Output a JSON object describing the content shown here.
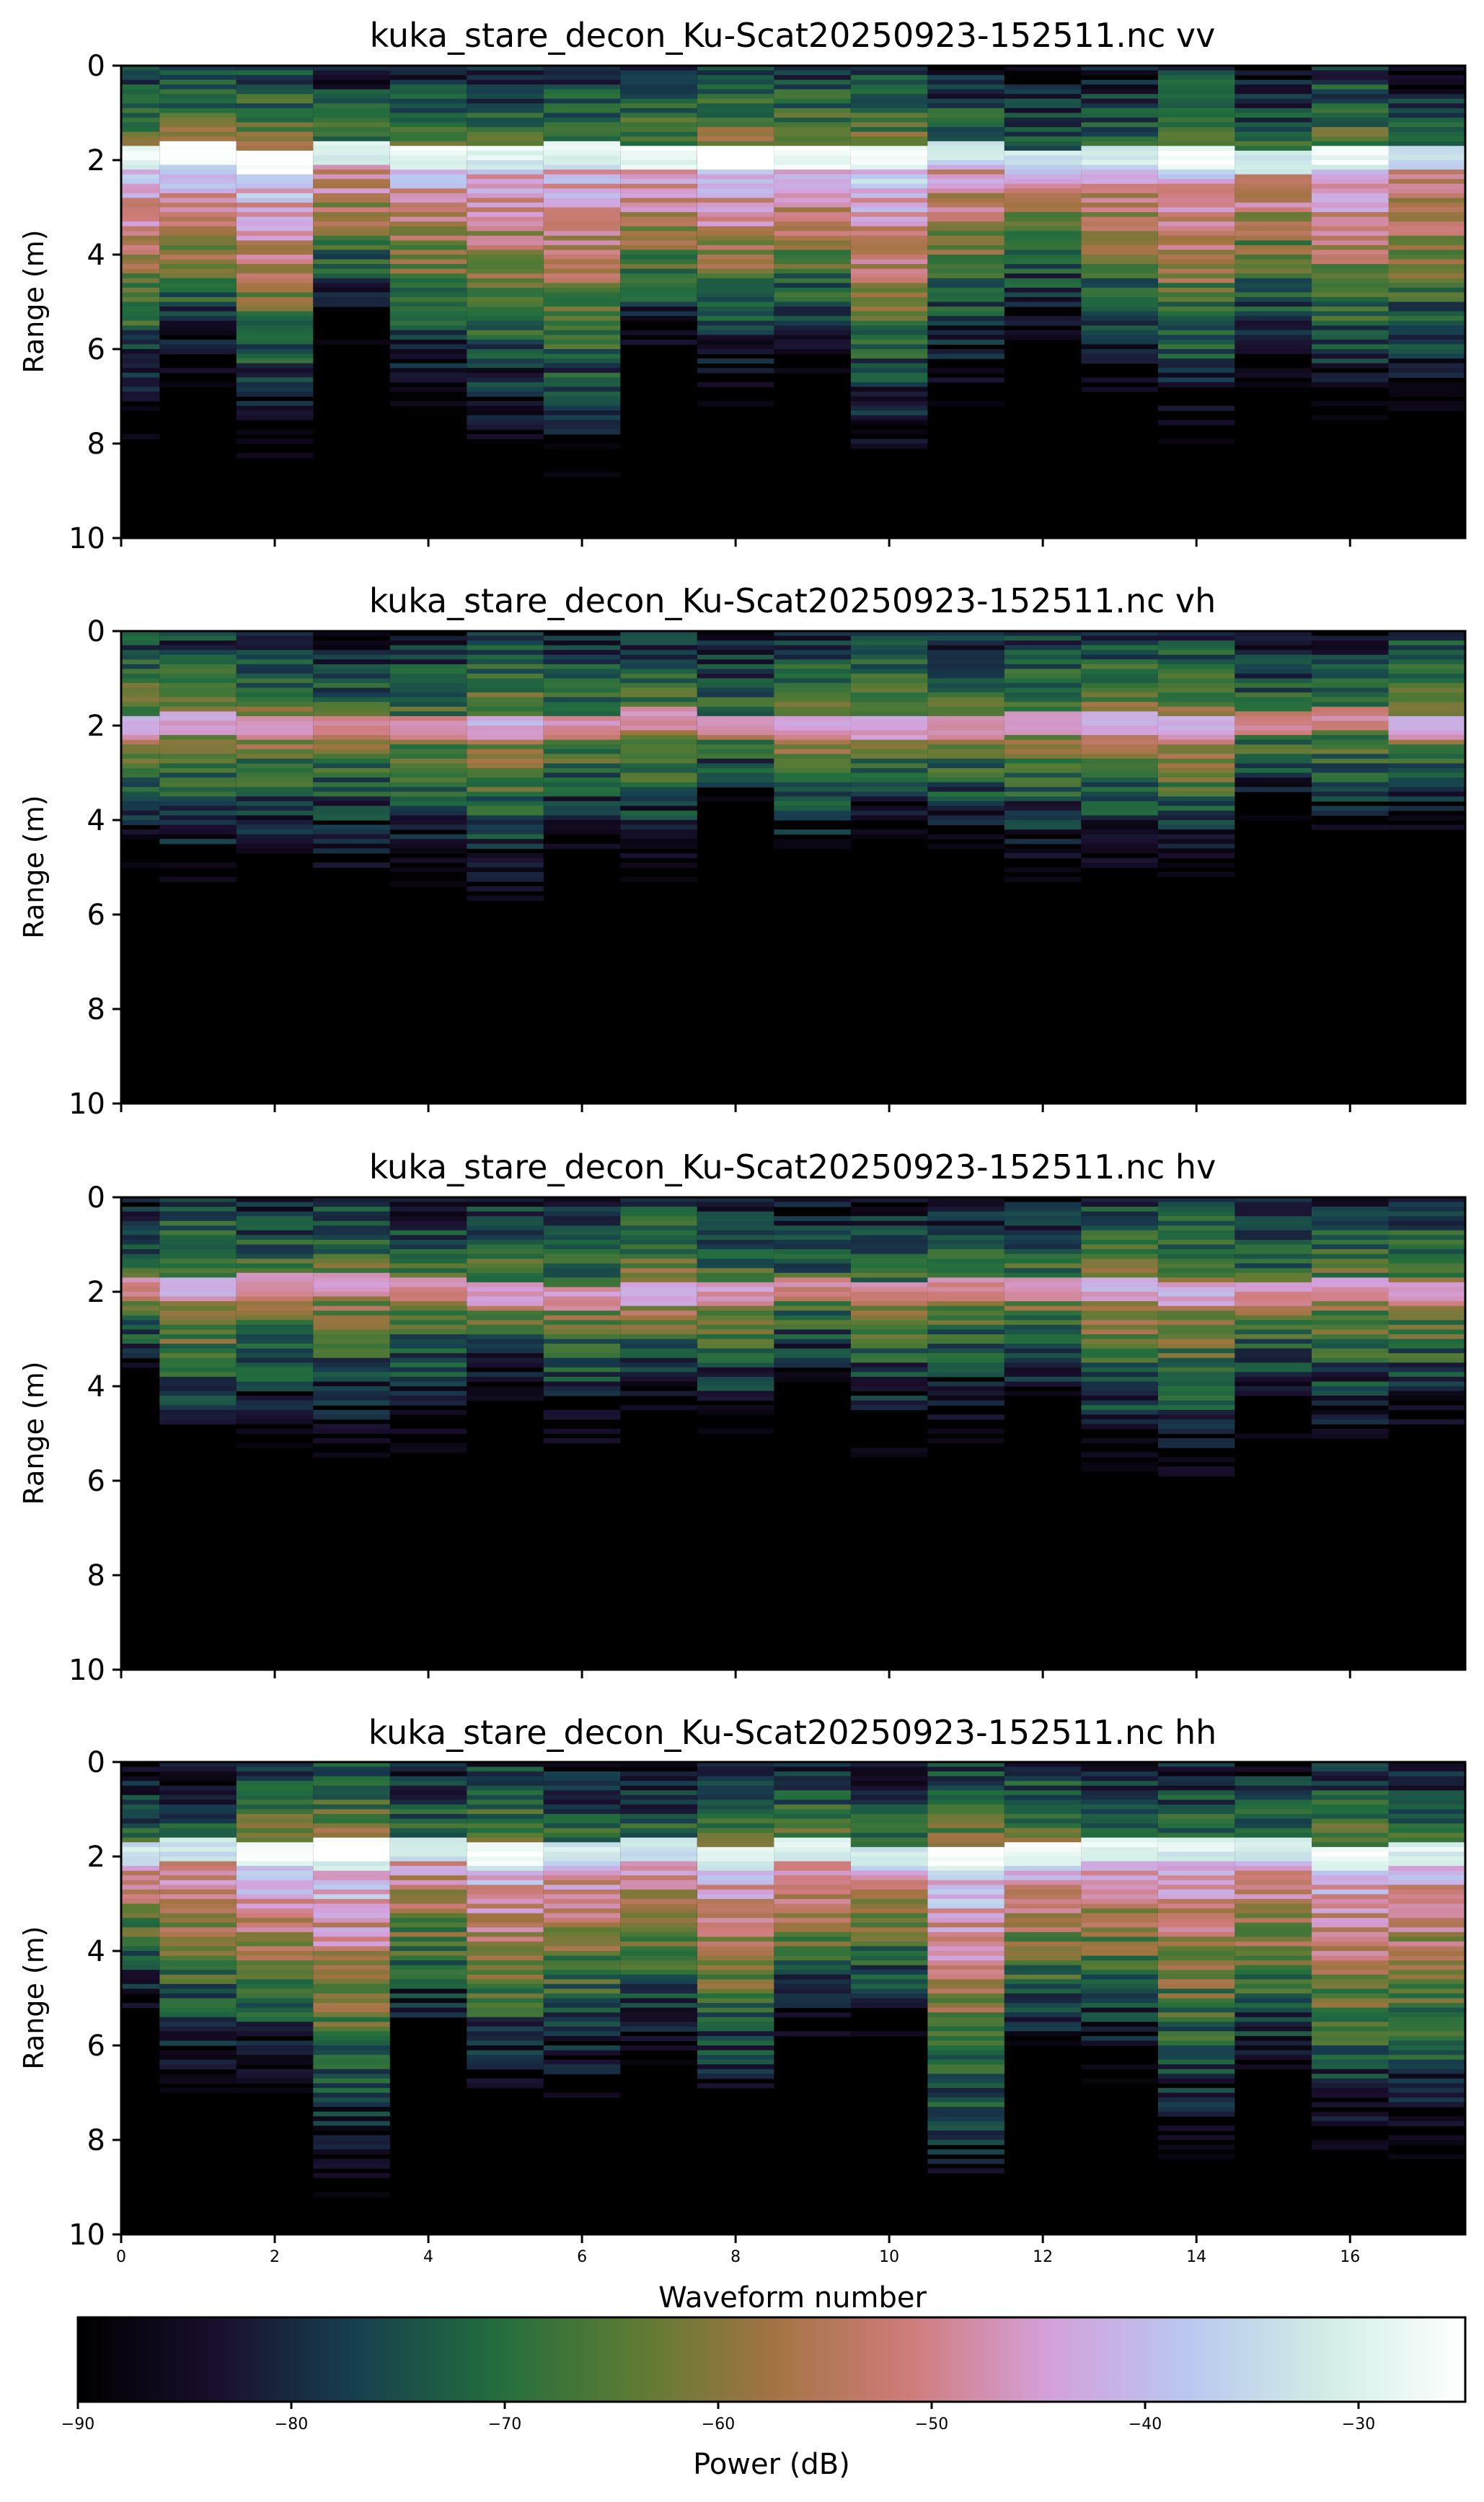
{
  "chart_data": [
    {
      "type": "heatmap",
      "title": "kuka_stare_decon_Ku-Scat20250923-152511.nc vv",
      "ylabel": "Range (m)",
      "ylim": [
        10,
        0
      ],
      "yticks": [
        "0",
        "2",
        "4",
        "6",
        "8",
        "10"
      ],
      "n_waveforms": 18,
      "surface_range_m": 1.85,
      "peak_power_dB": -27,
      "signal_depth_m": 5.5
    },
    {
      "type": "heatmap",
      "title": "kuka_stare_decon_Ku-Scat20250923-152511.nc vh",
      "ylabel": "Range (m)",
      "ylim": [
        10,
        0
      ],
      "yticks": [
        "0",
        "2",
        "4",
        "6",
        "8",
        "10"
      ],
      "n_waveforms": 18,
      "surface_range_m": 1.9,
      "peak_power_dB": -45,
      "signal_depth_m": 4.5
    },
    {
      "type": "heatmap",
      "title": "kuka_stare_decon_Ku-Scat20250923-152511.nc hv",
      "ylabel": "Range (m)",
      "ylim": [
        10,
        0
      ],
      "yticks": [
        "0",
        "2",
        "4",
        "6",
        "8",
        "10"
      ],
      "n_waveforms": 18,
      "surface_range_m": 1.9,
      "peak_power_dB": -45,
      "signal_depth_m": 4.5
    },
    {
      "type": "heatmap",
      "title": "kuka_stare_decon_Ku-Scat20250923-152511.nc hh",
      "ylabel": "Range (m)",
      "ylim": [
        10,
        0
      ],
      "yticks": [
        "0",
        "2",
        "4",
        "6",
        "8",
        "10"
      ],
      "n_waveforms": 18,
      "surface_range_m": 1.85,
      "peak_power_dB": -27,
      "signal_depth_m": 5.5,
      "xlabel": "Waveform number",
      "xlim": [
        0,
        17.5
      ],
      "xticks": [
        "0",
        "2",
        "4",
        "6",
        "8",
        "10",
        "12",
        "14",
        "16"
      ]
    }
  ],
  "colorbar": {
    "label": "Power (dB)",
    "range": [
      -90,
      -25
    ],
    "ticks": [
      "−90",
      "−80",
      "−70",
      "−60",
      "−50",
      "−40",
      "−30"
    ],
    "colormap": "cubehelix",
    "colormap_stops": [
      "#000000",
      "#1a0f2e",
      "#173f4f",
      "#226d3e",
      "#5b7b34",
      "#a27442",
      "#cf7c7b",
      "#d4a0db",
      "#b9c7f0",
      "#d0eee6",
      "#ffffff"
    ]
  }
}
